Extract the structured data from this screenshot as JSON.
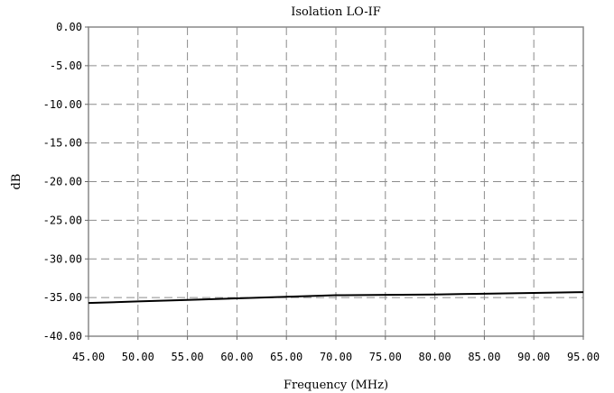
{
  "chart_data": {
    "type": "line",
    "title": "Isolation LO-IF",
    "xlabel": "Frequency (MHz)",
    "ylabel": "dB",
    "xlim": [
      45,
      95
    ],
    "ylim": [
      -40,
      0
    ],
    "x_ticks": [
      "45.00",
      "50.00",
      "55.00",
      "60.00",
      "65.00",
      "70.00",
      "75.00",
      "80.00",
      "85.00",
      "90.00",
      "95.00"
    ],
    "y_ticks": [
      "0.00",
      "-5.00",
      "-10.00",
      "-15.00",
      "-20.00",
      "-25.00",
      "-30.00",
      "-35.00",
      "-40.00"
    ],
    "grid": true,
    "series": [
      {
        "x": [
          45,
          50,
          55,
          60,
          65,
          70,
          75,
          80,
          85,
          90,
          95
        ],
        "y": [
          -35.7,
          -35.5,
          -35.3,
          -35.1,
          -34.9,
          -34.7,
          -34.65,
          -34.6,
          -34.5,
          -34.4,
          -34.3
        ]
      }
    ],
    "colors": {
      "series": "#000000",
      "grid": "#8c8c8c",
      "frame": "#888888"
    }
  }
}
